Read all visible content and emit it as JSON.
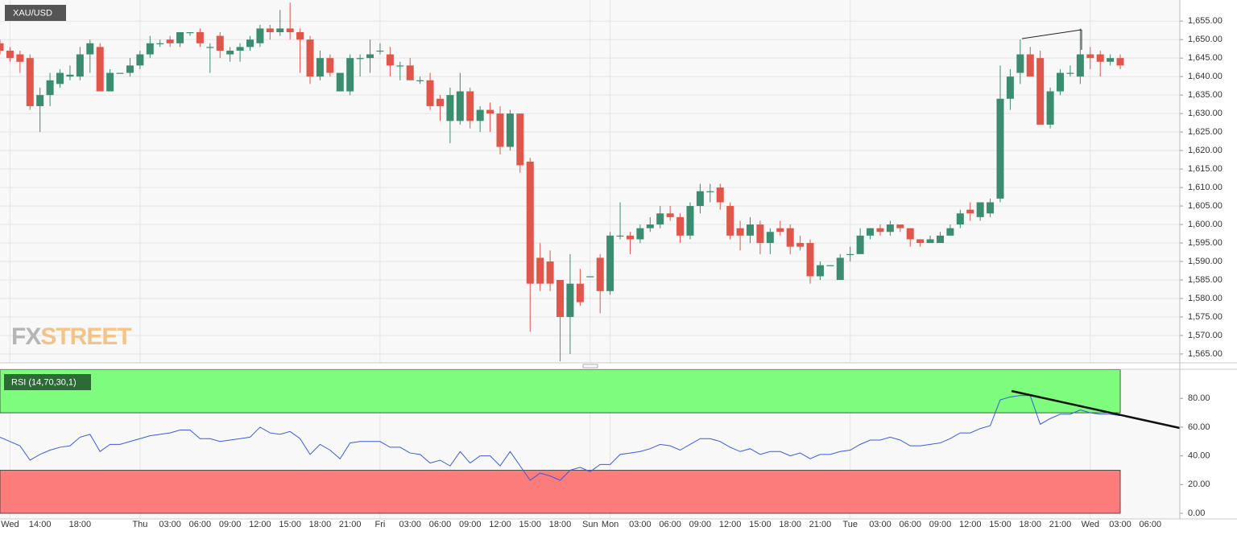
{
  "chart_data": [
    {
      "type": "candlestick",
      "title": "XAU/USD",
      "watermark": [
        "FX",
        "STREET"
      ],
      "categories": [
        null,
        "Wed",
        null,
        null,
        "14:00",
        null,
        null,
        null,
        "18:00",
        null,
        null,
        null,
        null,
        null,
        "Thu",
        null,
        null,
        "03:00",
        null,
        null,
        "06:00",
        null,
        null,
        "09:00",
        null,
        null,
        "12:00",
        null,
        null,
        "15:00",
        null,
        null,
        "18:00",
        null,
        null,
        "21:00",
        null,
        null,
        "Fri",
        null,
        null,
        "03:00",
        null,
        null,
        "06:00",
        null,
        null,
        "09:00",
        null,
        null,
        "12:00",
        null,
        null,
        "15:00",
        null,
        null,
        "18:00",
        null,
        null,
        "Sun",
        null,
        "Mon",
        null,
        null,
        "03:00",
        null,
        null,
        "06:00",
        null,
        null,
        "09:00",
        null,
        null,
        "12:00",
        null,
        null,
        "15:00",
        null,
        null,
        "18:00",
        null,
        null,
        "21:00",
        null,
        null,
        "Tue",
        null,
        null,
        "03:00",
        null,
        null,
        "06:00",
        null,
        null,
        "09:00",
        null,
        null,
        "12:00",
        null,
        null,
        "15:00",
        null,
        null,
        "18:00",
        null,
        null,
        "21:00",
        null,
        null,
        "Wed",
        null,
        null,
        "03:00",
        null,
        null,
        "06:00"
      ],
      "open": [
        1649,
        1647,
        1646,
        1645,
        1632,
        1635,
        1638,
        1640,
        1640,
        1646,
        1648,
        1636,
        1641,
        1641,
        1643,
        1646,
        1649,
        1650,
        1649,
        1652,
        1652,
        1648,
        1651,
        1646,
        1647,
        1648,
        1649,
        1653,
        1652,
        1653,
        1652,
        1650,
        1640,
        1645,
        1636,
        1636,
        1645,
        1645,
        1647,
        1646,
        1643,
        1643,
        1639,
        1639,
        1634,
        1628,
        1628,
        1636,
        1628,
        1631,
        1630,
        1621,
        1630,
        1617,
        1591,
        1590,
        1585,
        1575,
        1584,
        1586,
        1591,
        1582,
        1597,
        1597,
        1596,
        1599,
        1600,
        1603,
        1602,
        1597,
        1605,
        1609,
        1610,
        1605,
        1599,
        1597,
        1600,
        1595,
        1599,
        1599,
        1595,
        1595,
        1586,
        1589,
        1585,
        1592,
        1592,
        1597,
        1599,
        1598,
        1600,
        1599,
        1596,
        1595,
        1595,
        1597,
        1600,
        1604,
        1602,
        1603,
        1607,
        1634,
        1641,
        1646,
        1645,
        1627,
        1636,
        1641,
        1640,
        1646,
        1646,
        1644,
        1645,
        null,
        null,
        null
      ],
      "high": [
        1650,
        1648,
        1647,
        1646,
        1637,
        1641,
        1642,
        1643,
        1648,
        1650,
        1649,
        1642,
        1641,
        1645,
        1647,
        1651,
        1650,
        1651,
        1652,
        1652,
        1653,
        1649,
        1652,
        1648,
        1649,
        1651,
        1654,
        1654,
        1658,
        1660,
        1653,
        1651,
        1647,
        1646,
        1641,
        1646,
        1646,
        1650,
        1649,
        1648,
        1644,
        1645,
        1640,
        1641,
        1635,
        1637,
        1641,
        1637,
        1632,
        1633,
        1632,
        1631,
        1630,
        1618,
        1595,
        1593,
        1585,
        1592,
        1588,
        1586,
        1592,
        1598,
        1606,
        1598,
        1600,
        1602,
        1605,
        1605,
        1603,
        1606,
        1611,
        1611,
        1611,
        1606,
        1601,
        1602,
        1601,
        1599,
        1601,
        1600,
        1597,
        1596,
        1590,
        1589,
        1592,
        1594,
        1599,
        1599,
        1600,
        1601,
        1600,
        1599,
        1596,
        1597,
        1598,
        1600,
        1604,
        1606,
        1606,
        1607,
        1643,
        1642,
        1650,
        1648,
        1647,
        1637,
        1642,
        1643,
        1653,
        1648,
        1647,
        1646,
        1646,
        null,
        null,
        null
      ],
      "low": [
        1646,
        1644,
        1641,
        1631,
        1625,
        1632,
        1637,
        1639,
        1639,
        1641,
        1636,
        1636,
        1641,
        1640,
        1642,
        1645,
        1648,
        1648,
        1648,
        1651,
        1648,
        1641,
        1645,
        1644,
        1644,
        1647,
        1648,
        1650,
        1651,
        1650,
        1641,
        1638,
        1639,
        1640,
        1636,
        1635,
        1640,
        1641,
        1646,
        1640,
        1639,
        1639,
        1638,
        1631,
        1628,
        1622,
        1627,
        1626,
        1625,
        1625,
        1619,
        1620,
        1614,
        1571,
        1582,
        1582,
        1563,
        1565,
        1578,
        1586,
        1576,
        1581,
        1596,
        1592,
        1595,
        1598,
        1599,
        1601,
        1595,
        1596,
        1603,
        1606,
        1604,
        1596,
        1593,
        1595,
        1592,
        1592,
        1597,
        1592,
        1593,
        1584,
        1585,
        1589,
        1585,
        1590,
        1592,
        1596,
        1597,
        1597,
        1598,
        1594,
        1594,
        1595,
        1595,
        1597,
        1599,
        1601,
        1601,
        1602,
        1606,
        1631,
        1638,
        1640,
        1627,
        1626,
        1635,
        1640,
        1638,
        1642,
        1640,
        1643,
        1642,
        null,
        null,
        null
      ],
      "close": [
        1647,
        1645,
        1644,
        1632,
        1635,
        1639,
        1641,
        1640.5,
        1646,
        1649,
        1636,
        1641,
        1641,
        1643,
        1646,
        1649,
        1649,
        1649,
        1652,
        1652,
        1649,
        1648,
        1647,
        1647,
        1648,
        1650,
        1653,
        1652,
        1653,
        1652,
        1650,
        1640,
        1645,
        1641,
        1641,
        1645,
        1645,
        1646,
        1647,
        1643,
        1643,
        1639,
        1639,
        1632,
        1632,
        1635,
        1636,
        1628,
        1631,
        1630,
        1621,
        1630,
        1616,
        1584,
        1584,
        1584,
        1575,
        1584,
        1579,
        1586,
        1582,
        1597,
        1597,
        1596,
        1599,
        1600,
        1603,
        1602,
        1597,
        1605,
        1609,
        1609,
        1606,
        1597,
        1597,
        1600,
        1595,
        1598,
        1598,
        1594,
        1594,
        1586,
        1589,
        1589,
        1591,
        1592,
        1597,
        1599,
        1598,
        1600,
        1599,
        1596,
        1595,
        1596,
        1597,
        1599,
        1603,
        1603,
        1606,
        1606,
        1634,
        1640,
        1646,
        1640,
        1627,
        1636,
        1641,
        1641,
        1646,
        1645,
        1644,
        1645,
        1643,
        null,
        null,
        null
      ],
      "up_color": "#3b8d70",
      "down_color": "#e0564a",
      "ylim": [
        1562.6,
        1660.7
      ],
      "yticks": [
        {
          "value": 1565,
          "label": "1,565.00"
        },
        {
          "value": 1570,
          "label": "1,570.00"
        },
        {
          "value": 1575,
          "label": "1,575.00"
        },
        {
          "value": 1580,
          "label": "1,580.00"
        },
        {
          "value": 1585,
          "label": "1,585.00"
        },
        {
          "value": 1590,
          "label": "1,590.00"
        },
        {
          "value": 1595,
          "label": "1,595.00"
        },
        {
          "value": 1600,
          "label": "1,600.00"
        },
        {
          "value": 1605,
          "label": "1,605.00"
        },
        {
          "value": 1610,
          "label": "1,610.00"
        },
        {
          "value": 1615,
          "label": "1,615.00"
        },
        {
          "value": 1620,
          "label": "1,620.00"
        },
        {
          "value": 1625,
          "label": "1,625.00"
        },
        {
          "value": 1630,
          "label": "1,630.00"
        },
        {
          "value": 1635,
          "label": "1,635.00"
        },
        {
          "value": 1640,
          "label": "1,640.00"
        },
        {
          "value": 1645,
          "label": "1,645.00"
        },
        {
          "value": 1650,
          "label": "1,650.00"
        },
        {
          "value": 1655,
          "label": "1,655.00"
        }
      ],
      "grid": true
    },
    {
      "type": "line",
      "title": "RSI (14,70,30,1)",
      "color": "#3b5bdb",
      "values": [
        53,
        50,
        47,
        37,
        41,
        44,
        46,
        47,
        53,
        55,
        43,
        48,
        48,
        50,
        52,
        54,
        55,
        56,
        58,
        58,
        52,
        52,
        50,
        51,
        52,
        53,
        60,
        56,
        55,
        57,
        52,
        41,
        48,
        44,
        38,
        49,
        50,
        50,
        50,
        46,
        46,
        42,
        41,
        35,
        37,
        33,
        43,
        35,
        40,
        40,
        33,
        43,
        33,
        23,
        28,
        26,
        23,
        30,
        32,
        29,
        34,
        34,
        41,
        42,
        43,
        45,
        48,
        47,
        44,
        48,
        52,
        52,
        50,
        46,
        43,
        45,
        41,
        43,
        43,
        40,
        42,
        38,
        41,
        41,
        43,
        44,
        48,
        51,
        51,
        53,
        51,
        47,
        47,
        48,
        49,
        52,
        56,
        56,
        59,
        61,
        79,
        81,
        82,
        82,
        62,
        66,
        69,
        69,
        72,
        70,
        69,
        69,
        68,
        null,
        null,
        null
      ],
      "bands": [
        {
          "range": [
            70,
            100
          ],
          "color": "#7dfc7d"
        },
        {
          "range": [
            0,
            30
          ],
          "color": "#fc7b7b"
        }
      ],
      "ylim": [
        -3.9,
        100.3
      ],
      "yticks": [
        {
          "value": 0,
          "label": "0.00"
        },
        {
          "value": 20,
          "label": "20.00"
        },
        {
          "value": 40,
          "label": "40.00"
        },
        {
          "value": 60,
          "label": "60.00"
        },
        {
          "value": 80,
          "label": "80.00"
        }
      ]
    }
  ]
}
